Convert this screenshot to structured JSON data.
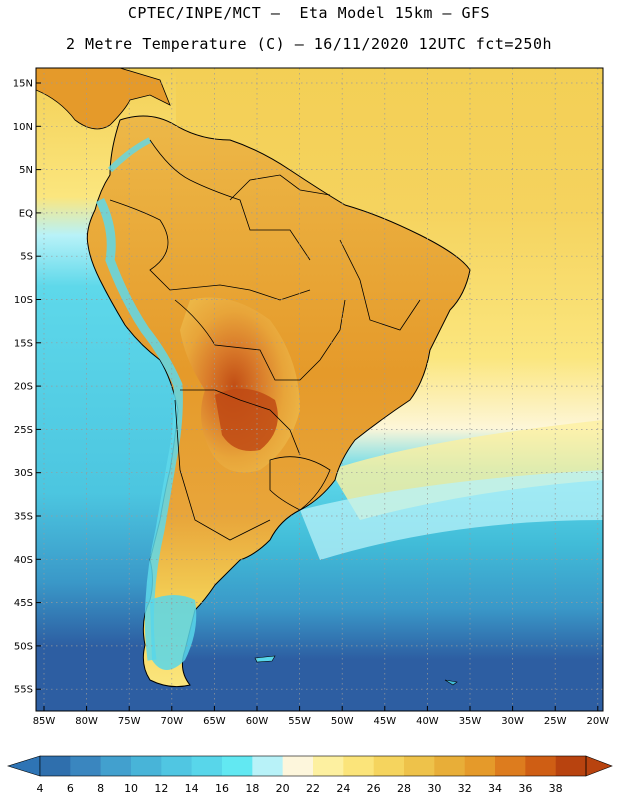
{
  "header": {
    "title_line1": "CPTEC/INPE/MCT –  Eta Model 15km – GFS",
    "title_line2": "2 Metre Temperature (C) – 16/11/2020 12UTC fct=250h"
  },
  "map": {
    "lat_labels": [
      "15N",
      "10N",
      "5N",
      "EQ",
      "5S",
      "10S",
      "15S",
      "20S",
      "25S",
      "30S",
      "35S",
      "40S",
      "45S",
      "50S",
      "55S"
    ],
    "lon_labels": [
      "85W",
      "80W",
      "75W",
      "70W",
      "65W",
      "60W",
      "55W",
      "50W",
      "45W",
      "40W",
      "35W",
      "30W",
      "25W",
      "20W"
    ],
    "colors": {
      "ocean_north": "#f3cf55",
      "ocean_mid": "#fbe67e",
      "ocean_pale": "#fdf6d8",
      "ocean_cyan": "#5ed8ea",
      "ocean_blue1": "#41bcd8",
      "ocean_blue2": "#3a98c8",
      "ocean_blue3": "#2d5ea2",
      "land_hot": "#e8a53a",
      "land_hotter": "#d8782a",
      "land_hottest": "#c04a14",
      "border": "#000000",
      "grid": "#9a9a9a"
    }
  },
  "colorbar": {
    "labels": [
      "4",
      "6",
      "8",
      "10",
      "12",
      "14",
      "16",
      "18",
      "20",
      "22",
      "24",
      "26",
      "28",
      "30",
      "32",
      "34",
      "36",
      "38"
    ],
    "low_color": "#2e74b5",
    "high_color": "#b8430f",
    "colors": [
      "#2f6fad",
      "#3a86bf",
      "#42a0ce",
      "#48b4d8",
      "#50c6e2",
      "#58d6ea",
      "#62e8f2",
      "#b8f2f8",
      "#fdf6dc",
      "#fdf0a0",
      "#fbe47a",
      "#f5d45e",
      "#eec24a",
      "#e8ae38",
      "#e59a2a",
      "#dd7c1e",
      "#cf5e14",
      "#b8430f"
    ]
  }
}
